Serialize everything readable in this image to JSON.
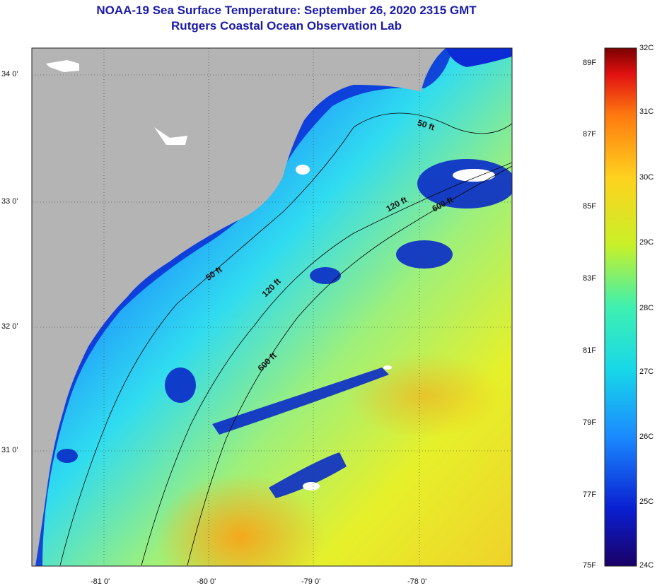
{
  "title": {
    "line1": "NOAA-19 Sea Surface Temperature:  September 26, 2020 2315 GMT",
    "line2": "Rutgers Coastal Ocean Observation Lab"
  },
  "map": {
    "lat_labels": [
      "34 0'",
      "33 0'",
      "32 0'",
      "31 0'"
    ],
    "lon_labels": [
      "-81 0'",
      "-80 0'",
      "-79 0'",
      "-78 0'"
    ],
    "isobath_labels": [
      "50 ft",
      "120 ft",
      "600 ft",
      "50 ft",
      "120 ft",
      "600 ft"
    ]
  },
  "colorbar": {
    "fahrenheit_labels": [
      "89F",
      "87F",
      "85F",
      "83F",
      "81F",
      "79F",
      "77F",
      "75F"
    ],
    "celsius_labels": [
      "32C",
      "31C",
      "30C",
      "29C",
      "28C",
      "27C",
      "26C",
      "25C",
      "24C"
    ],
    "colors": [
      "#1a0066",
      "#0a1fd1",
      "#1a8aff",
      "#18d8e8",
      "#3ef0b0",
      "#c8f028",
      "#ffd21e",
      "#ff7a10",
      "#e01010",
      "#7a0000"
    ]
  },
  "colors": {
    "land": "#b4b4b4",
    "title": "#1a1aa8"
  }
}
